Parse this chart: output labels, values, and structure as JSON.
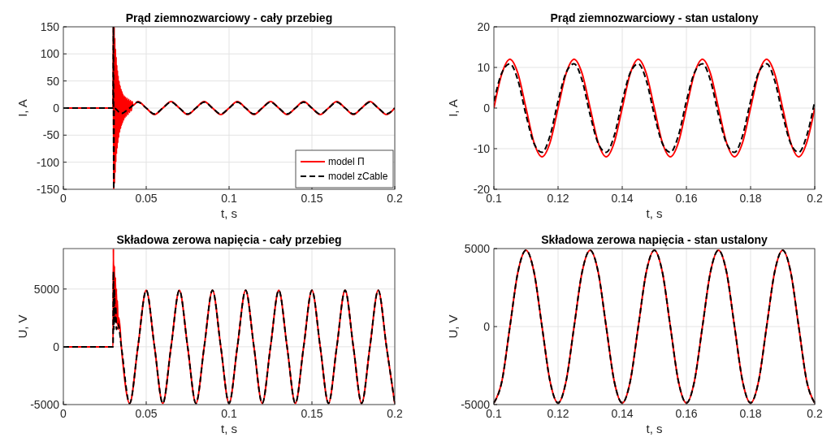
{
  "chart_data": [
    {
      "type": "line",
      "title": "Prąd ziemnozwarciowy - cały przebieg",
      "xlabel": "t, s",
      "ylabel": "I, A",
      "xlim": [
        0,
        0.2
      ],
      "xticks": [
        0,
        0.05,
        0.1,
        0.15,
        0.2
      ],
      "ylim": [
        -150,
        150
      ],
      "yticks": [
        -150,
        -100,
        -50,
        0,
        50,
        100,
        150
      ],
      "grid": true,
      "legend": "bottom right",
      "series": [
        {
          "name": "model Π",
          "color": "#ff0000",
          "line_style": "solid",
          "x": [
            0,
            0.03,
            0.0302,
            0.0304,
            0.0306,
            0.0308,
            0.031,
            0.0312,
            0.0314,
            0.0316,
            0.0318,
            0.032,
            0.0322,
            0.0324,
            0.0326,
            0.0328,
            0.033,
            0.0333,
            0.0336,
            0.0339,
            0.0342,
            0.0345,
            0.0348,
            0.0351,
            0.0354,
            0.0357,
            0.036,
            0.0364,
            0.0368,
            0.0372,
            0.0376,
            0.038,
            0.0385,
            0.039,
            0.0395,
            0.04,
            0.0405,
            0.041,
            0.0415,
            0.042,
            0.045,
            0.05,
            0.055,
            0.06,
            0.065,
            0.07,
            0.075,
            0.08,
            0.085,
            0.09,
            0.095,
            0.1,
            0.105,
            0.11,
            0.115,
            0.12,
            0.125,
            0.13,
            0.135,
            0.14,
            0.145,
            0.15,
            0.155,
            0.16,
            0.165,
            0.17,
            0.175,
            0.18,
            0.185,
            0.19,
            0.195,
            0.2
          ],
          "values": [
            0,
            0,
            150,
            -150,
            150,
            -140,
            130,
            -120,
            110,
            -100,
            95,
            -85,
            80,
            -75,
            70,
            -65,
            60,
            -55,
            50,
            -45,
            42,
            -38,
            35,
            -32,
            30,
            -27,
            25,
            -22,
            22,
            -18,
            20,
            -15,
            18,
            -12,
            16,
            -8,
            14,
            -5,
            12,
            5,
            12,
            0,
            -12,
            0,
            12,
            0,
            -12,
            0,
            12,
            0,
            -12,
            0,
            12,
            0,
            -12,
            0,
            12,
            0,
            -12,
            0,
            12,
            0,
            -12,
            0,
            12,
            0,
            -12,
            0,
            12,
            0,
            -12,
            0
          ]
        },
        {
          "name": "model zCable",
          "color": "#000000",
          "line_style": "dashed",
          "x": [
            0,
            0.03,
            0.0302,
            0.0304,
            0.0306,
            0.035,
            0.04,
            0.045,
            0.05,
            0.055,
            0.06,
            0.065,
            0.07,
            0.075,
            0.08,
            0.085,
            0.09,
            0.095,
            0.1,
            0.105,
            0.11,
            0.115,
            0.12,
            0.125,
            0.13,
            0.135,
            0.14,
            0.145,
            0.15,
            0.155,
            0.16,
            0.165,
            0.17,
            0.175,
            0.18,
            0.185,
            0.19,
            0.195,
            0.2
          ],
          "values": [
            0,
            0,
            150,
            -150,
            0,
            -10,
            0,
            11,
            0,
            -11,
            0,
            11,
            0,
            -11,
            0,
            11,
            0,
            -11,
            0,
            11,
            0,
            -11,
            0,
            11,
            0,
            -11,
            0,
            11,
            0,
            -11,
            0,
            11,
            0,
            -11,
            0,
            11,
            0,
            -11,
            0
          ]
        }
      ]
    },
    {
      "type": "line",
      "title": "Prąd ziemnozwarciowy - stan ustalony",
      "xlabel": "t, s",
      "ylabel": "I, A",
      "xlim": [
        0.1,
        0.2
      ],
      "xticks": [
        0.1,
        0.12,
        0.14,
        0.16,
        0.18,
        0.2
      ],
      "ylim": [
        -20,
        20
      ],
      "yticks": [
        -20,
        -10,
        0,
        10,
        20
      ],
      "grid": true,
      "x": [
        0.1,
        0.1025,
        0.105,
        0.1075,
        0.11,
        0.1125,
        0.115,
        0.1175,
        0.12,
        0.1225,
        0.125,
        0.1275,
        0.13,
        0.1325,
        0.135,
        0.1375,
        0.14,
        0.1425,
        0.145,
        0.1475,
        0.15,
        0.1525,
        0.155,
        0.1575,
        0.16,
        0.1625,
        0.165,
        0.1675,
        0.17,
        0.1725,
        0.175,
        0.1775,
        0.18,
        0.1825,
        0.185,
        0.1875,
        0.19,
        0.1925,
        0.195,
        0.1975,
        0.2
      ],
      "series": [
        {
          "color": "#ff0000",
          "line_style": "solid",
          "values": [
            0,
            8.5,
            12,
            8.5,
            0,
            -8.5,
            -12,
            -8.5,
            0,
            8.5,
            12,
            8.5,
            0,
            -8.5,
            -12,
            -8.5,
            0,
            8.5,
            12,
            8.5,
            0,
            -8.5,
            -12,
            -8.5,
            0,
            8.5,
            12,
            8.5,
            0,
            -8.5,
            -12,
            -8.5,
            0,
            8.5,
            12,
            8.5,
            0,
            -8.5,
            -12,
            -8.5,
            0
          ]
        },
        {
          "color": "#000000",
          "line_style": "dashed",
          "values": [
            1.7,
            8.7,
            10.9,
            6.8,
            -1.7,
            -8.7,
            -10.9,
            -6.8,
            1.7,
            8.7,
            10.9,
            6.8,
            -1.7,
            -8.7,
            -10.9,
            -6.8,
            1.7,
            8.7,
            10.9,
            6.8,
            -1.7,
            -8.7,
            -10.9,
            -6.8,
            1.7,
            8.7,
            10.9,
            6.8,
            -1.7,
            -8.7,
            -10.9,
            -6.8,
            1.7,
            8.7,
            10.9,
            6.8,
            -1.7,
            -8.7,
            -10.9,
            -6.8,
            1.7
          ]
        }
      ]
    },
    {
      "type": "line",
      "title": "Składowa zerowa napięcia - cały przebieg",
      "xlabel": "t, s",
      "ylabel": "U, V",
      "xlim": [
        0,
        0.2
      ],
      "xticks": [
        0,
        0.05,
        0.1,
        0.15,
        0.2
      ],
      "ylim": [
        -5000,
        8500
      ],
      "yticks": [
        -5000,
        0,
        5000
      ],
      "grid": true,
      "series": [
        {
          "color": "#ff0000",
          "line_style": "solid",
          "x": [
            0,
            0.03,
            0.0302,
            0.0305,
            0.0308,
            0.0311,
            0.0314,
            0.0317,
            0.032,
            0.0323,
            0.0326,
            0.033,
            0.0335,
            0.035,
            0.04,
            0.045,
            0.05,
            0.055,
            0.06,
            0.065,
            0.07,
            0.075,
            0.08,
            0.085,
            0.09,
            0.095,
            0.1,
            0.105,
            0.11,
            0.115,
            0.12,
            0.125,
            0.13,
            0.135,
            0.14,
            0.145,
            0.15,
            0.155,
            0.16,
            0.165,
            0.17,
            0.175,
            0.18,
            0.185,
            0.19,
            0.195,
            0.2
          ],
          "values": [
            0,
            0,
            8500,
            2000,
            7000,
            2500,
            6000,
            2500,
            5000,
            2000,
            4000,
            1500,
            2500,
            0,
            -4900,
            0,
            4900,
            0,
            -4900,
            0,
            4900,
            0,
            -4900,
            0,
            4900,
            0,
            -4900,
            0,
            4900,
            0,
            -4900,
            0,
            4900,
            0,
            -4900,
            0,
            4900,
            0,
            -4900,
            0,
            4900,
            0,
            -4900,
            0,
            4900,
            0,
            -4900
          ]
        },
        {
          "color": "#000000",
          "line_style": "dashed",
          "x": [
            0,
            0.03,
            0.0302,
            0.0305,
            0.0308,
            0.0312,
            0.0316,
            0.032,
            0.033,
            0.035,
            0.04,
            0.045,
            0.05,
            0.055,
            0.06,
            0.065,
            0.07,
            0.075,
            0.08,
            0.085,
            0.09,
            0.095,
            0.1,
            0.105,
            0.11,
            0.115,
            0.12,
            0.125,
            0.13,
            0.135,
            0.14,
            0.145,
            0.15,
            0.155,
            0.16,
            0.165,
            0.17,
            0.175,
            0.18,
            0.185,
            0.19,
            0.195,
            0.2
          ],
          "values": [
            0,
            0,
            6500,
            1500,
            5000,
            2000,
            3500,
            1500,
            2000,
            0,
            -4900,
            0,
            4900,
            0,
            -4900,
            0,
            4900,
            0,
            -4900,
            0,
            4900,
            0,
            -4900,
            0,
            4900,
            0,
            -4900,
            0,
            4900,
            0,
            -4900,
            0,
            4900,
            0,
            -4900,
            0,
            4900,
            0,
            -4900,
            0,
            4900,
            0,
            -4900
          ]
        }
      ]
    },
    {
      "type": "line",
      "title": "Składowa zerowa napięcia - stan ustalony",
      "xlabel": "t, s",
      "ylabel": "U, V",
      "xlim": [
        0.1,
        0.2
      ],
      "xticks": [
        0.1,
        0.12,
        0.14,
        0.16,
        0.18,
        0.2
      ],
      "ylim": [
        -5000,
        5000
      ],
      "yticks": [
        -5000,
        0,
        5000
      ],
      "grid": true,
      "x": [
        0.1,
        0.1025,
        0.105,
        0.1075,
        0.11,
        0.1125,
        0.115,
        0.1175,
        0.12,
        0.1225,
        0.125,
        0.1275,
        0.13,
        0.1325,
        0.135,
        0.1375,
        0.14,
        0.1425,
        0.145,
        0.1475,
        0.15,
        0.1525,
        0.155,
        0.1575,
        0.16,
        0.1625,
        0.165,
        0.1675,
        0.17,
        0.1725,
        0.175,
        0.1775,
        0.18,
        0.1825,
        0.185,
        0.1875,
        0.19,
        0.1925,
        0.195,
        0.1975,
        0.2
      ],
      "series": [
        {
          "color": "#ff0000",
          "line_style": "solid",
          "values": [
            -4900,
            -3500,
            0,
            3500,
            4900,
            3500,
            0,
            -3500,
            -4900,
            -3500,
            0,
            3500,
            4900,
            3500,
            0,
            -3500,
            -4900,
            -3500,
            0,
            3500,
            4900,
            3500,
            0,
            -3500,
            -4900,
            -3500,
            0,
            3500,
            4900,
            3500,
            0,
            -3500,
            -4900,
            -3500,
            0,
            3500,
            4900,
            3500,
            0,
            -3500,
            -4900
          ]
        },
        {
          "color": "#000000",
          "line_style": "dashed",
          "values": [
            -4900,
            -3500,
            0,
            3500,
            4900,
            3500,
            0,
            -3500,
            -4900,
            -3500,
            0,
            3500,
            4900,
            3500,
            0,
            -3500,
            -4900,
            -3500,
            0,
            3500,
            4900,
            3500,
            0,
            -3500,
            -4900,
            -3500,
            0,
            3500,
            4900,
            3500,
            0,
            -3500,
            -4900,
            -3500,
            0,
            3500,
            4900,
            3500,
            0,
            -3500,
            -4900
          ]
        }
      ]
    }
  ]
}
